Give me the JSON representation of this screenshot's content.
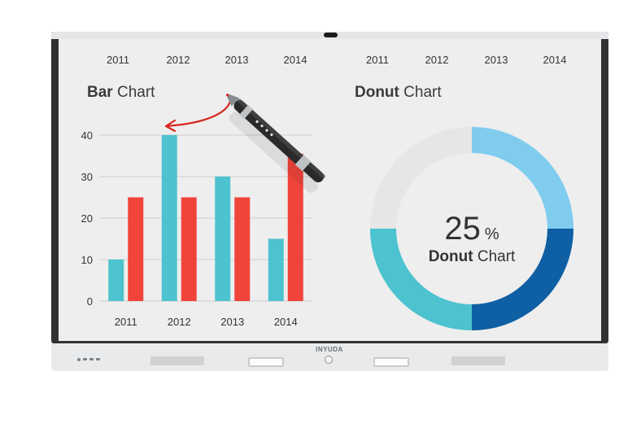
{
  "device": {
    "brand": "INYUDA"
  },
  "screen": {
    "top_years_left": [
      "2011",
      "2012",
      "2013",
      "2014"
    ],
    "top_years_right": [
      "2011",
      "2012",
      "2013",
      "2014"
    ],
    "bar_chart": {
      "title_bold": "Bar",
      "title_rest": " Chart"
    },
    "donut_chart": {
      "title_bold": "Donut",
      "title_rest": " Chart",
      "center_value": "25",
      "center_unit": "%",
      "center_label_bold": "Donut",
      "center_label_rest": " Chart"
    }
  },
  "colors": {
    "teal": "#4dc3cf",
    "red": "#f0443a",
    "light_blue": "#80ccef",
    "dark_blue": "#0f5fa4",
    "light_gray": "#e6e6e6",
    "annotation_red": "#d7261f"
  },
  "chart_data": [
    {
      "type": "bar",
      "title": "Bar Chart",
      "categories": [
        "2011",
        "2012",
        "2013",
        "2014"
      ],
      "series": [
        {
          "values": [
            10,
            40,
            30,
            15
          ]
        },
        {
          "values": [
            25,
            25,
            25,
            35.5
          ]
        }
      ],
      "ylim": [
        0,
        40
      ],
      "yticks": [
        0,
        10,
        20,
        30,
        40
      ],
      "grid": true
    },
    {
      "type": "pie",
      "title": "Donut Chart",
      "center_text": "25 %",
      "segments": [
        {
          "value": 25,
          "color": "#80ccef"
        },
        {
          "value": 25,
          "color": "#0f5fa4"
        },
        {
          "value": 25,
          "color": "#4dc3cf"
        },
        {
          "value": 25,
          "color": "#e6e6e6"
        }
      ]
    }
  ]
}
